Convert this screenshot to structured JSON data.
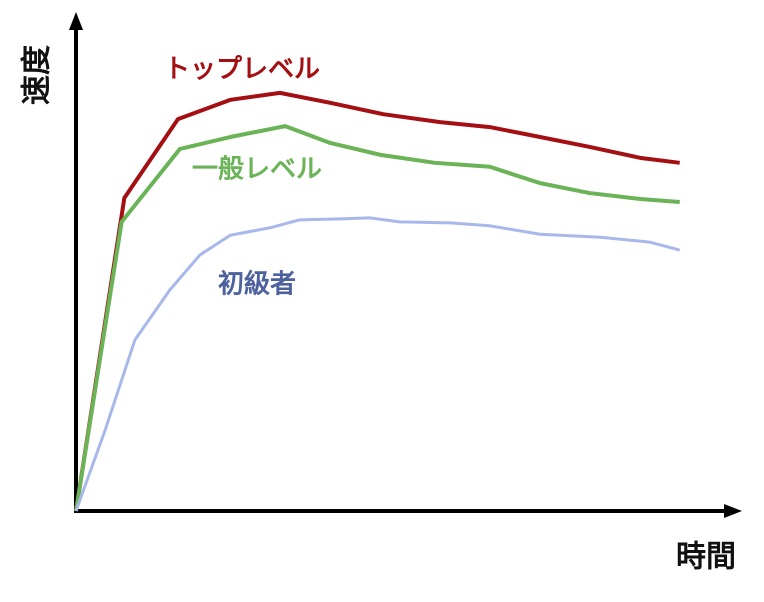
{
  "chart_data": {
    "type": "line",
    "y_label": "速度",
    "x_label": "時間",
    "xlim": [
      0,
      100
    ],
    "ylim": [
      0,
      100
    ],
    "series": [
      {
        "name": "トップレベル",
        "color": "#a30f12",
        "x": [
          0,
          7.3,
          15.4,
          23.3,
          30.8,
          38.4,
          46.4,
          55.0,
          62.5,
          70.1,
          77.6,
          85.2,
          91.2
        ],
        "values": [
          0,
          63.1,
          79.0,
          82.9,
          84.3,
          82.3,
          80.0,
          78.4,
          77.4,
          75.4,
          73.4,
          71.2,
          70.2
        ]
      },
      {
        "name": "一般レベル",
        "color": "#6ab356",
        "x": [
          0,
          6.9,
          15.7,
          23.3,
          31.6,
          38.4,
          46.0,
          54.2,
          62.5,
          70.1,
          77.6,
          85.2,
          91.2
        ],
        "values": [
          0,
          58.3,
          73.0,
          75.4,
          77.6,
          74.2,
          71.8,
          70.2,
          69.4,
          66.1,
          64.1,
          62.9,
          62.3
        ]
      },
      {
        "name": "初級者",
        "color": "#a9b8ea",
        "x": [
          0,
          4.4,
          8.9,
          14.2,
          18.7,
          23.3,
          29.3,
          33.8,
          39.9,
          44.4,
          48.9,
          56.5,
          62.5,
          70.1,
          79.2,
          86.7,
          91.2
        ],
        "values": [
          0,
          16.3,
          34.5,
          44.6,
          51.6,
          55.6,
          57.1,
          58.7,
          58.9,
          59.1,
          58.3,
          58.1,
          57.5,
          55.8,
          55.2,
          54.2,
          52.6
        ]
      }
    ]
  }
}
